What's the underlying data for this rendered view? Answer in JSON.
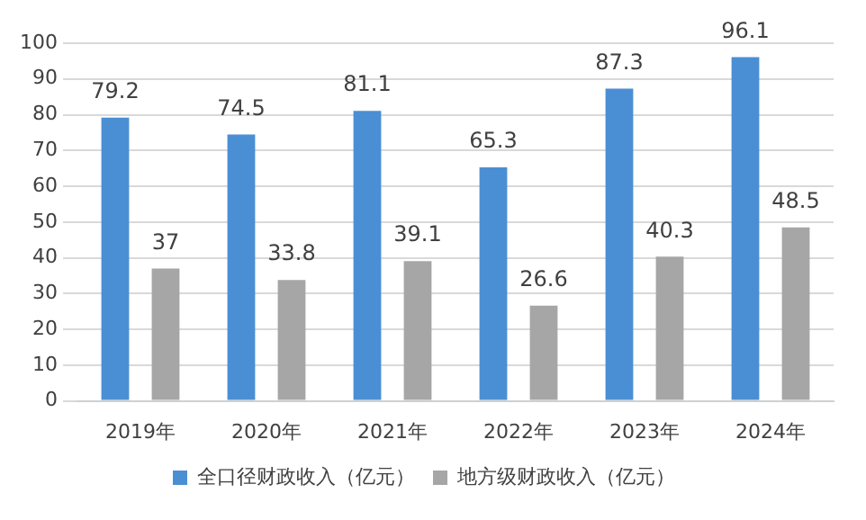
{
  "chart_data": {
    "type": "bar",
    "categories": [
      "2019年",
      "2020年",
      "2021年",
      "2022年",
      "2023年",
      "2024年"
    ],
    "series": [
      {
        "name": "全口径财政收入（亿元）",
        "color": "#4a8fd4",
        "values": [
          79.2,
          74.5,
          81.1,
          65.3,
          87.3,
          96.1
        ]
      },
      {
        "name": "地方级财政收入（亿元）",
        "color": "#a6a6a6",
        "values": [
          37,
          33.8,
          39.1,
          26.6,
          40.3,
          48.5
        ]
      }
    ],
    "ylim": [
      0,
      100
    ],
    "yticks": [
      0,
      10,
      20,
      30,
      40,
      50,
      60,
      70,
      80,
      90,
      100
    ],
    "grid": "y",
    "legend": "bottom",
    "data_labels": true
  }
}
